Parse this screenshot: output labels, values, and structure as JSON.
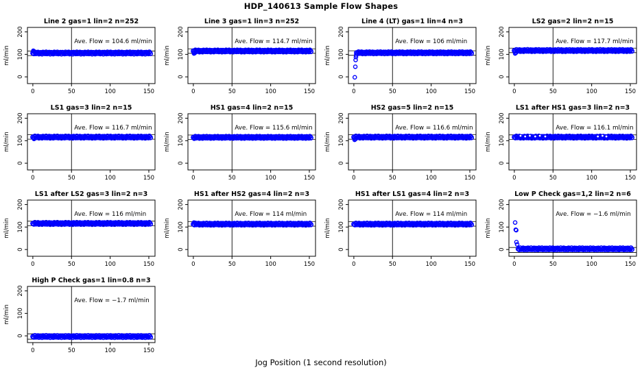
{
  "title": "HDP_140613  Sample Flow Shapes",
  "xlabel": "Jog Position (1 second resolution)",
  "colors": {
    "point": "#0000ff",
    "axis": "#000000",
    "background": "#ffffff"
  },
  "axes": {
    "ylabel": "ml/min",
    "xticks": [
      0,
      50,
      100,
      150
    ],
    "yticks": [
      0,
      100,
      200
    ],
    "vline": 50,
    "xlim": [
      -7,
      158
    ],
    "ylim": [
      -30,
      220
    ]
  },
  "chart_data": {
    "type": "scatter",
    "title": "HDP_140613  Sample Flow Shapes",
    "xlabel": "Jog Position (1 second resolution)",
    "ylabel": "ml/min",
    "grid": "off",
    "plots": [
      {
        "title": "Line 2 gas=1 lin=2 n=252",
        "annotation": "Ave. Flow =  104.6  ml/min",
        "ave_flow": 104.6,
        "band": {
          "y": 106,
          "from": 0,
          "to": 152
        },
        "hlines": [
          114.6,
          94.6
        ],
        "points": [
          [
            0.6,
            116
          ],
          [
            1.4,
            113
          ]
        ]
      },
      {
        "title": "Line 3 gas=1 lin=3 n=252",
        "annotation": "Ave. Flow =  114.7  ml/min",
        "ave_flow": 114.7,
        "band": {
          "y": 115,
          "from": 0,
          "to": 152
        },
        "hlines": [
          124.7,
          104.7
        ],
        "points": [
          [
            0.8,
            104
          ],
          [
            1.8,
            106
          ]
        ]
      },
      {
        "title": "Line 4 (LT) gas=1 lin=4 n=3",
        "annotation": "Ave. Flow =  106  ml/min",
        "ave_flow": 106,
        "band": {
          "y": 107,
          "from": 3.5,
          "to": 152
        },
        "hlines": [
          116,
          96
        ],
        "points": [
          [
            1.2,
            -2
          ],
          [
            1.9,
            45
          ],
          [
            2.3,
            75
          ],
          [
            2.7,
            88
          ],
          [
            3.0,
            96
          ]
        ]
      },
      {
        "title": "LS2 gas=2 lin=2 n=15",
        "annotation": "Ave. Flow =  117.7  ml/min",
        "ave_flow": 117.7,
        "band": {
          "y": 117,
          "from": 0,
          "to": 152
        },
        "hlines": [
          127.7,
          107.7
        ],
        "points": [
          [
            1,
            104
          ],
          [
            2,
            107
          ]
        ]
      },
      {
        "title": "LS1 gas=3 lin=2 n=15",
        "annotation": "Ave. Flow =  116.7  ml/min",
        "ave_flow": 116.7,
        "band": {
          "y": 116,
          "from": 0,
          "to": 152
        },
        "hlines": [
          126.7,
          106.7
        ],
        "points": [
          [
            1.5,
            108
          ]
        ]
      },
      {
        "title": "HS1 gas=4 lin=2 n=15",
        "annotation": "Ave. Flow =  115.6  ml/min",
        "ave_flow": 115.6,
        "band": {
          "y": 115,
          "from": 0,
          "to": 152
        },
        "hlines": [
          125.6,
          105.6
        ],
        "points": [
          [
            1,
            109
          ],
          [
            2,
            110
          ]
        ]
      },
      {
        "title": "HS2 gas=5 lin=2 n=15",
        "annotation": "Ave. Flow =  116.6  ml/min",
        "ave_flow": 116.6,
        "band": {
          "y": 116,
          "from": 0,
          "to": 152
        },
        "hlines": [
          126.6,
          106.6
        ],
        "points": [
          [
            1,
            104
          ],
          [
            2,
            107
          ]
        ]
      },
      {
        "title": "LS1 after HS1 gas=3 lin=2 n=3",
        "annotation": "Ave. Flow =  116.1  ml/min",
        "ave_flow": 116.1,
        "band": {
          "y": 116,
          "from": 0,
          "to": 152
        },
        "hlines": [
          126.1,
          106.1
        ],
        "points": [],
        "white_dots": [
          [
            8,
            -2
          ],
          [
            14,
            -1
          ],
          [
            20,
            -2
          ],
          [
            27,
            -1
          ],
          [
            33,
            -2
          ],
          [
            40,
            -1
          ],
          [
            108,
            -1
          ],
          [
            114,
            -2
          ],
          [
            119,
            -1
          ]
        ]
      },
      {
        "title": "LS1 after LS2 gas=3 lin=2 n=3",
        "annotation": "Ave. Flow =  116  ml/min",
        "ave_flow": 116,
        "band": {
          "y": 116,
          "from": 0,
          "to": 152
        },
        "hlines": [
          126,
          106
        ],
        "points": []
      },
      {
        "title": "HS1 after HS2 gas=4 lin=2 n=3",
        "annotation": "Ave. Flow =  114  ml/min",
        "ave_flow": 114,
        "band": {
          "y": 113,
          "from": 0,
          "to": 152
        },
        "hlines": [
          124,
          104
        ],
        "points": [
          [
            0.8,
            120
          ]
        ]
      },
      {
        "title": "HS1 after LS1 gas=4 lin=2 n=3",
        "annotation": "Ave. Flow =  114  ml/min",
        "ave_flow": 114,
        "band": {
          "y": 113,
          "from": 0,
          "to": 152
        },
        "hlines": [
          124,
          104
        ],
        "points": []
      },
      {
        "title": "Low P Check gas=1,2 lin=2 n=6",
        "annotation": "Ave. Flow =  −1.6  ml/min",
        "ave_flow": -1.6,
        "band": {
          "y": 3,
          "from": 5,
          "to": 152
        },
        "hlines": [
          9,
          -13
        ],
        "points": [
          [
            1.0,
            120
          ],
          [
            1.8,
            88
          ],
          [
            2.4,
            86
          ],
          [
            2.7,
            33
          ],
          [
            3.6,
            23
          ]
        ]
      },
      {
        "title": "High P Check gas=1 lin=0.8 n=3",
        "annotation": "Ave. Flow =  −1.7  ml/min",
        "ave_flow": -1.7,
        "band": {
          "y": -3,
          "from": 0,
          "to": 152
        },
        "hlines": [
          9,
          -15
        ],
        "points": []
      }
    ]
  }
}
